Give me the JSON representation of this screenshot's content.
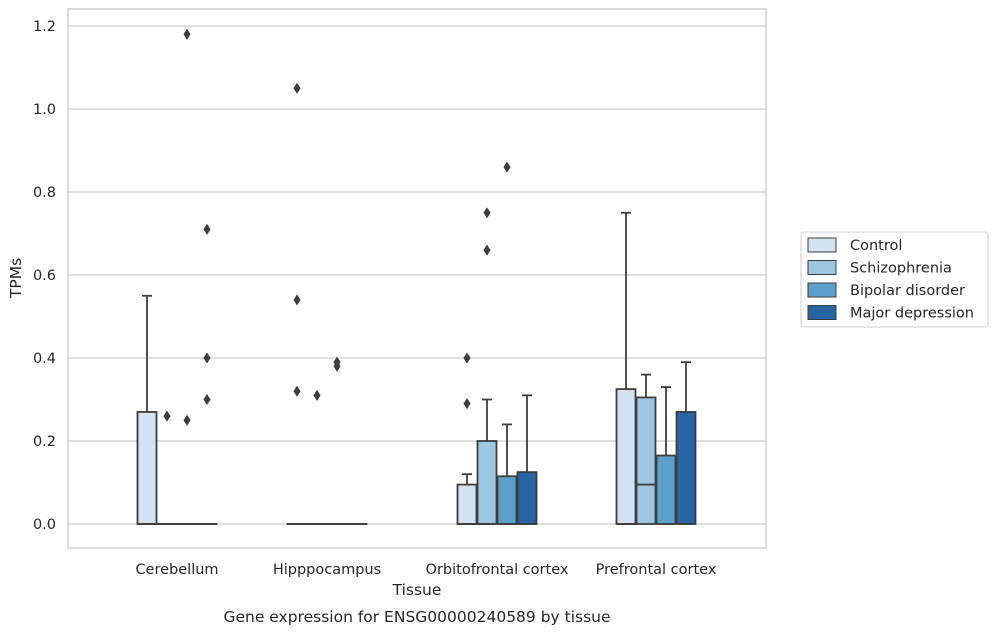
{
  "caption": "Gene expression for ENSG00000240589 by tissue",
  "chart_data": {
    "type": "box",
    "xlabel": "Tissue",
    "ylabel": "TPMs",
    "ylim": [
      -0.057,
      1.24
    ],
    "yticks": [
      "0.0",
      "0.2",
      "0.4",
      "0.6",
      "0.8",
      "1.0",
      "1.2"
    ],
    "grid": true,
    "legend_position": "right",
    "categories": [
      "Cerebellum",
      "Hipppocampus",
      "Orbitofrontal cortex",
      "Prefrontal cortex"
    ],
    "series": [
      {
        "name": "Control",
        "color": "#d1e2f2",
        "boxes": [
          {
            "q1": 0.0,
            "median": 0.0,
            "q3": 0.27,
            "whisker_low": 0.0,
            "whisker_high": 0.55,
            "outliers": []
          },
          {
            "q1": 0.0,
            "median": 0.0,
            "q3": 0.0,
            "whisker_low": 0.0,
            "whisker_high": 0.0,
            "outliers": [
              1.05,
              0.54,
              0.32
            ]
          },
          {
            "q1": 0.0,
            "median": 0.0,
            "q3": 0.095,
            "whisker_low": 0.0,
            "whisker_high": 0.12,
            "outliers": [
              0.4,
              0.29
            ]
          },
          {
            "q1": 0.0,
            "median": 0.0,
            "q3": 0.325,
            "whisker_low": 0.0,
            "whisker_high": 0.75,
            "outliers": []
          }
        ]
      },
      {
        "name": "Schizophrenia",
        "color": "#9cc7e0",
        "boxes": [
          {
            "q1": 0.0,
            "median": 0.0,
            "q3": 0.0,
            "whisker_low": 0.0,
            "whisker_high": 0.0,
            "outliers": [
              0.26
            ]
          },
          {
            "q1": 0.0,
            "median": 0.0,
            "q3": 0.0,
            "whisker_low": 0.0,
            "whisker_high": 0.0,
            "outliers": [
              0.31
            ]
          },
          {
            "q1": 0.0,
            "median": 0.0,
            "q3": 0.2,
            "whisker_low": 0.0,
            "whisker_high": 0.3,
            "outliers": [
              0.75,
              0.66
            ]
          },
          {
            "q1": 0.0,
            "median": 0.095,
            "q3": 0.305,
            "whisker_low": 0.0,
            "whisker_high": 0.36,
            "outliers": []
          }
        ]
      },
      {
        "name": "Bipolar disorder",
        "color": "#5b9fcb",
        "boxes": [
          {
            "q1": 0.0,
            "median": 0.0,
            "q3": 0.0,
            "whisker_low": 0.0,
            "whisker_high": 0.0,
            "outliers": [
              1.18,
              0.25
            ]
          },
          {
            "q1": 0.0,
            "median": 0.0,
            "q3": 0.0,
            "whisker_low": 0.0,
            "whisker_high": 0.0,
            "outliers": [
              0.39,
              0.38
            ]
          },
          {
            "q1": 0.0,
            "median": 0.0,
            "q3": 0.115,
            "whisker_low": 0.0,
            "whisker_high": 0.24,
            "outliers": [
              0.86
            ]
          },
          {
            "q1": 0.0,
            "median": 0.0,
            "q3": 0.165,
            "whisker_low": 0.0,
            "whisker_high": 0.33,
            "outliers": []
          }
        ]
      },
      {
        "name": "Major depression",
        "color": "#2866a3",
        "boxes": [
          {
            "q1": 0.0,
            "median": 0.0,
            "q3": 0.0,
            "whisker_low": 0.0,
            "whisker_high": 0.0,
            "outliers": [
              0.71,
              0.4,
              0.3
            ]
          },
          {
            "q1": 0.0,
            "median": 0.0,
            "q3": 0.0,
            "whisker_low": 0.0,
            "whisker_high": 0.0,
            "outliers": []
          },
          {
            "q1": 0.0,
            "median": 0.0,
            "q3": 0.125,
            "whisker_low": 0.0,
            "whisker_high": 0.31,
            "outliers": []
          },
          {
            "q1": 0.0,
            "median": 0.0,
            "q3": 0.27,
            "whisker_low": 0.0,
            "whisker_high": 0.39,
            "outliers": []
          }
        ]
      }
    ]
  }
}
